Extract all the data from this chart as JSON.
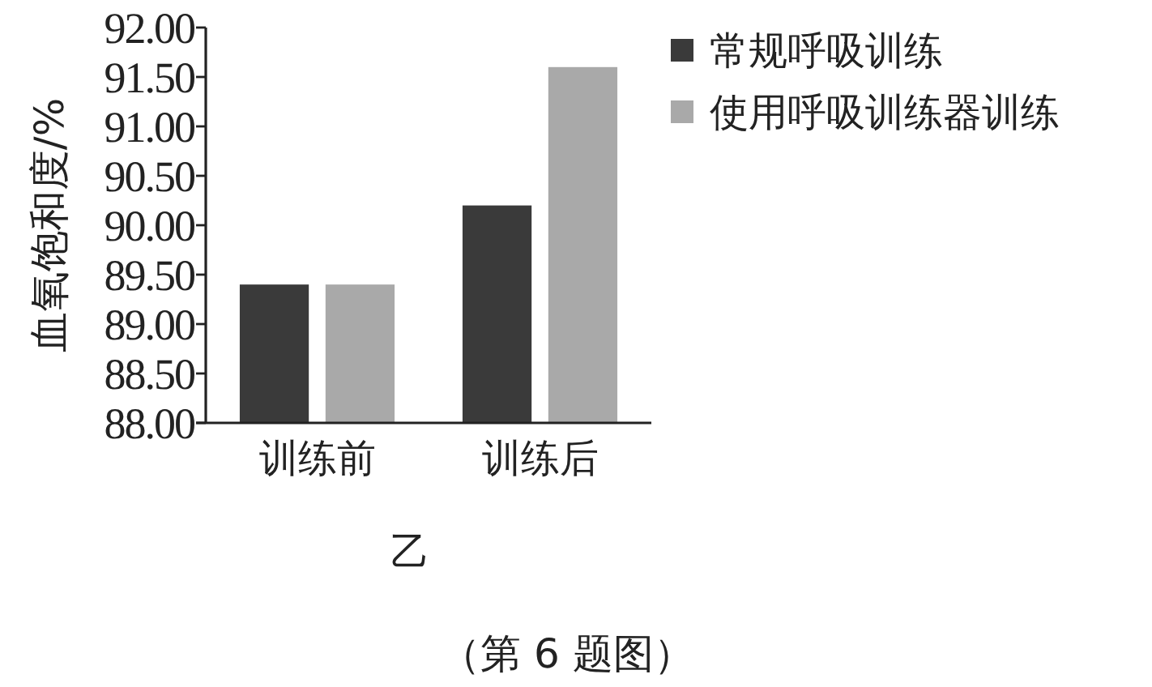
{
  "chart_data": {
    "type": "bar",
    "ylabel": "血氧饱和度/%",
    "categories": [
      "训练前",
      "训练后"
    ],
    "series": [
      {
        "name": "常规呼吸训练",
        "color": "#3a3a3a",
        "values": [
          89.4,
          90.2
        ]
      },
      {
        "name": "使用呼吸训练器训练",
        "color": "#a9a9a9",
        "values": [
          89.4,
          91.6
        ]
      }
    ],
    "ylim": [
      88,
      92
    ],
    "yticks": [
      {
        "value": 88,
        "label": "88.00"
      },
      {
        "value": 88.5,
        "label": "88.50"
      },
      {
        "value": 89,
        "label": "89.00"
      },
      {
        "value": 89.5,
        "label": "89.50"
      },
      {
        "value": 90,
        "label": "90.00"
      },
      {
        "value": 90.5,
        "label": "90.50"
      },
      {
        "value": 91,
        "label": "91.00"
      },
      {
        "value": 91.5,
        "label": "91.50"
      },
      {
        "value": 92,
        "label": "92.00"
      }
    ],
    "legend": "top right",
    "annotations": [
      "乙",
      "（第 6 题图）"
    ]
  }
}
